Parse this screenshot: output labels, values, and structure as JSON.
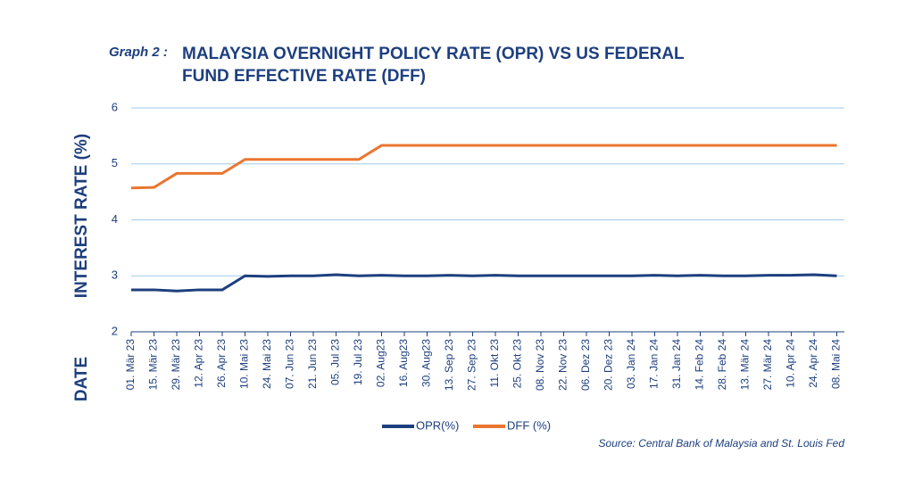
{
  "chart_data": {
    "type": "line",
    "label": "Graph 2 :",
    "title": "MALAYSIA OVERNIGHT POLICY RATE (OPR) VS US FEDERAL FUND EFFECTIVE RATE (DFF)",
    "ylabel": "INTEREST RATE (%)",
    "xlabel": "DATE",
    "source": "Source: Central Bank of Malaysia and St. Louis Fed",
    "categories": [
      "01. Mär 23",
      "15. Mär 23",
      "29. Mär 23",
      "12. Apr 23",
      "26. Apr 23",
      "10. Mai 23",
      "24. Mai 23",
      "07. Jun 23",
      "21. Jun 23",
      "05. Jul 23",
      "19. Jul 23",
      "02. Aug23",
      "16. Aug23",
      "30. Aug23",
      "13. Sep 23",
      "27. Sep 23",
      "11. Okt 23",
      "25. Okt 23",
      "08. Nov 23",
      "22. Nov 23",
      "06. Dez 23",
      "20. Dez 23",
      "03. Jan 24",
      "17. Jan 24",
      "31. Jan 24",
      "14. Feb 24",
      "28. Feb 24",
      "13. Mär 24",
      "27. Mär 24",
      "10. Apr 24",
      "24. Apr 24",
      "08. Mai 24"
    ],
    "series": [
      {
        "name": "OPR(%)",
        "color": "#1d3f7e",
        "values": [
          2.75,
          2.75,
          2.73,
          2.75,
          2.75,
          3.0,
          2.99,
          3.0,
          3.0,
          3.02,
          3.0,
          3.01,
          3.0,
          3.0,
          3.01,
          3.0,
          3.01,
          3.0,
          3.0,
          3.0,
          3.0,
          3.0,
          3.0,
          3.01,
          3.0,
          3.01,
          3.0,
          3.0,
          3.01,
          3.01,
          3.02,
          3.0
        ]
      },
      {
        "name": "DFF (%)",
        "color": "#ea7530",
        "values": [
          4.57,
          4.58,
          4.83,
          4.83,
          4.83,
          5.08,
          5.08,
          5.08,
          5.08,
          5.08,
          5.08,
          5.33,
          5.33,
          5.33,
          5.33,
          5.33,
          5.33,
          5.33,
          5.33,
          5.33,
          5.33,
          5.33,
          5.33,
          5.33,
          5.33,
          5.33,
          5.33,
          5.33,
          5.33,
          5.33,
          5.33,
          5.33
        ]
      }
    ],
    "ylim": [
      2,
      6
    ],
    "yticks": [
      2,
      3,
      4,
      5,
      6
    ],
    "grid": true
  }
}
